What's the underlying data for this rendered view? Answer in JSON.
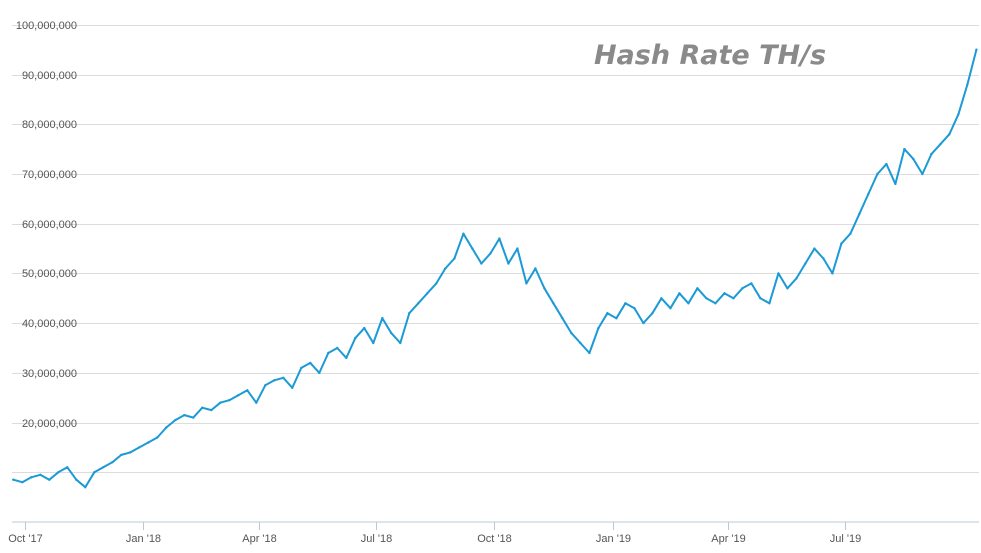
{
  "chart_data": {
    "type": "line",
    "title": "Hash Rate TH/s",
    "xlabel": "",
    "ylabel": "",
    "ylim": [
      0,
      105000000
    ],
    "y_ticks": [
      {
        "value": 20000000,
        "label": "20,000,000"
      },
      {
        "value": 30000000,
        "label": "30,000,000"
      },
      {
        "value": 40000000,
        "label": "40,000,000"
      },
      {
        "value": 50000000,
        "label": "50,000,000"
      },
      {
        "value": 60000000,
        "label": "60,000,000"
      },
      {
        "value": 70000000,
        "label": "70,000,000"
      },
      {
        "value": 80000000,
        "label": "80,000,000"
      },
      {
        "value": 90000000,
        "label": "90,000,000"
      },
      {
        "value": 100000000,
        "label": "100,000,000"
      }
    ],
    "x_ticks": [
      {
        "value": "2017-10-01",
        "label": "Oct '17"
      },
      {
        "value": "2018-01-01",
        "label": "Jan '18"
      },
      {
        "value": "2018-04-01",
        "label": "Apr '18"
      },
      {
        "value": "2018-07-01",
        "label": "Jul '18"
      },
      {
        "value": "2018-10-01",
        "label": "Oct '18"
      },
      {
        "value": "2019-01-01",
        "label": "Jan '19"
      },
      {
        "value": "2019-04-01",
        "label": "Apr '19"
      },
      {
        "value": "2019-07-01",
        "label": "Jul '19"
      }
    ],
    "xlim": [
      "2017-09-21",
      "2019-10-13"
    ],
    "grid": true,
    "line_color": "#1b9ad6",
    "series": [
      {
        "x": [
          "2017-09-22",
          "2017-09-29",
          "2017-10-06",
          "2017-10-13",
          "2017-10-20",
          "2017-10-27",
          "2017-11-03",
          "2017-11-10",
          "2017-11-17",
          "2017-11-24",
          "2017-12-01",
          "2017-12-08",
          "2017-12-15",
          "2017-12-22",
          "2017-12-29",
          "2018-01-05",
          "2018-01-12",
          "2018-01-19",
          "2018-01-26",
          "2018-02-02",
          "2018-02-09",
          "2018-02-16",
          "2018-02-23",
          "2018-03-02",
          "2018-03-09",
          "2018-03-16",
          "2018-03-23",
          "2018-03-30",
          "2018-04-06",
          "2018-04-13",
          "2018-04-20",
          "2018-04-27",
          "2018-05-04",
          "2018-05-11",
          "2018-05-18",
          "2018-05-25",
          "2018-06-01",
          "2018-06-08",
          "2018-06-15",
          "2018-06-22",
          "2018-06-29",
          "2018-07-06",
          "2018-07-13",
          "2018-07-20",
          "2018-07-27",
          "2018-08-03",
          "2018-08-10",
          "2018-08-17",
          "2018-08-24",
          "2018-08-31",
          "2018-09-07",
          "2018-09-14",
          "2018-09-21",
          "2018-09-28",
          "2018-10-05",
          "2018-10-12",
          "2018-10-19",
          "2018-10-26",
          "2018-11-02",
          "2018-11-09",
          "2018-11-16",
          "2018-11-23",
          "2018-11-30",
          "2018-12-07",
          "2018-12-14",
          "2018-12-21",
          "2018-12-28",
          "2019-01-04",
          "2019-01-11",
          "2019-01-18",
          "2019-01-25",
          "2019-02-01",
          "2019-02-08",
          "2019-02-15",
          "2019-02-22",
          "2019-03-01",
          "2019-03-08",
          "2019-03-15",
          "2019-03-22",
          "2019-03-29",
          "2019-04-05",
          "2019-04-12",
          "2019-04-19",
          "2019-04-26",
          "2019-05-03",
          "2019-05-10",
          "2019-05-17",
          "2019-05-24",
          "2019-05-31",
          "2019-06-07",
          "2019-06-14",
          "2019-06-21",
          "2019-06-28",
          "2019-07-05",
          "2019-07-12",
          "2019-07-19",
          "2019-07-26",
          "2019-08-02",
          "2019-08-09",
          "2019-08-16",
          "2019-08-23",
          "2019-08-30",
          "2019-09-06",
          "2019-09-13",
          "2019-09-20",
          "2019-09-27",
          "2019-10-04",
          "2019-10-11"
        ],
        "values": [
          8500000,
          8000000,
          9000000,
          9500000,
          8500000,
          10000000,
          11000000,
          8500000,
          7000000,
          10000000,
          11000000,
          12000000,
          13500000,
          14000000,
          15000000,
          16000000,
          17000000,
          19000000,
          20500000,
          21500000,
          21000000,
          23000000,
          22500000,
          24000000,
          24500000,
          25500000,
          26500000,
          24000000,
          27500000,
          28500000,
          29000000,
          27000000,
          31000000,
          32000000,
          30000000,
          34000000,
          35000000,
          33000000,
          37000000,
          39000000,
          36000000,
          41000000,
          38000000,
          36000000,
          42000000,
          44000000,
          46000000,
          48000000,
          51000000,
          53000000,
          58000000,
          55000000,
          52000000,
          54000000,
          57000000,
          52000000,
          55000000,
          48000000,
          51000000,
          47000000,
          44000000,
          41000000,
          38000000,
          36000000,
          34000000,
          39000000,
          42000000,
          41000000,
          44000000,
          43000000,
          40000000,
          42000000,
          45000000,
          43000000,
          46000000,
          44000000,
          47000000,
          45000000,
          44000000,
          46000000,
          45000000,
          47000000,
          48000000,
          45000000,
          44000000,
          50000000,
          47000000,
          49000000,
          52000000,
          55000000,
          53000000,
          50000000,
          56000000,
          58000000,
          62000000,
          66000000,
          70000000,
          72000000,
          68000000,
          75000000,
          73000000,
          70000000,
          74000000,
          76000000,
          78000000,
          82000000,
          88000000,
          95000000
        ]
      }
    ]
  }
}
